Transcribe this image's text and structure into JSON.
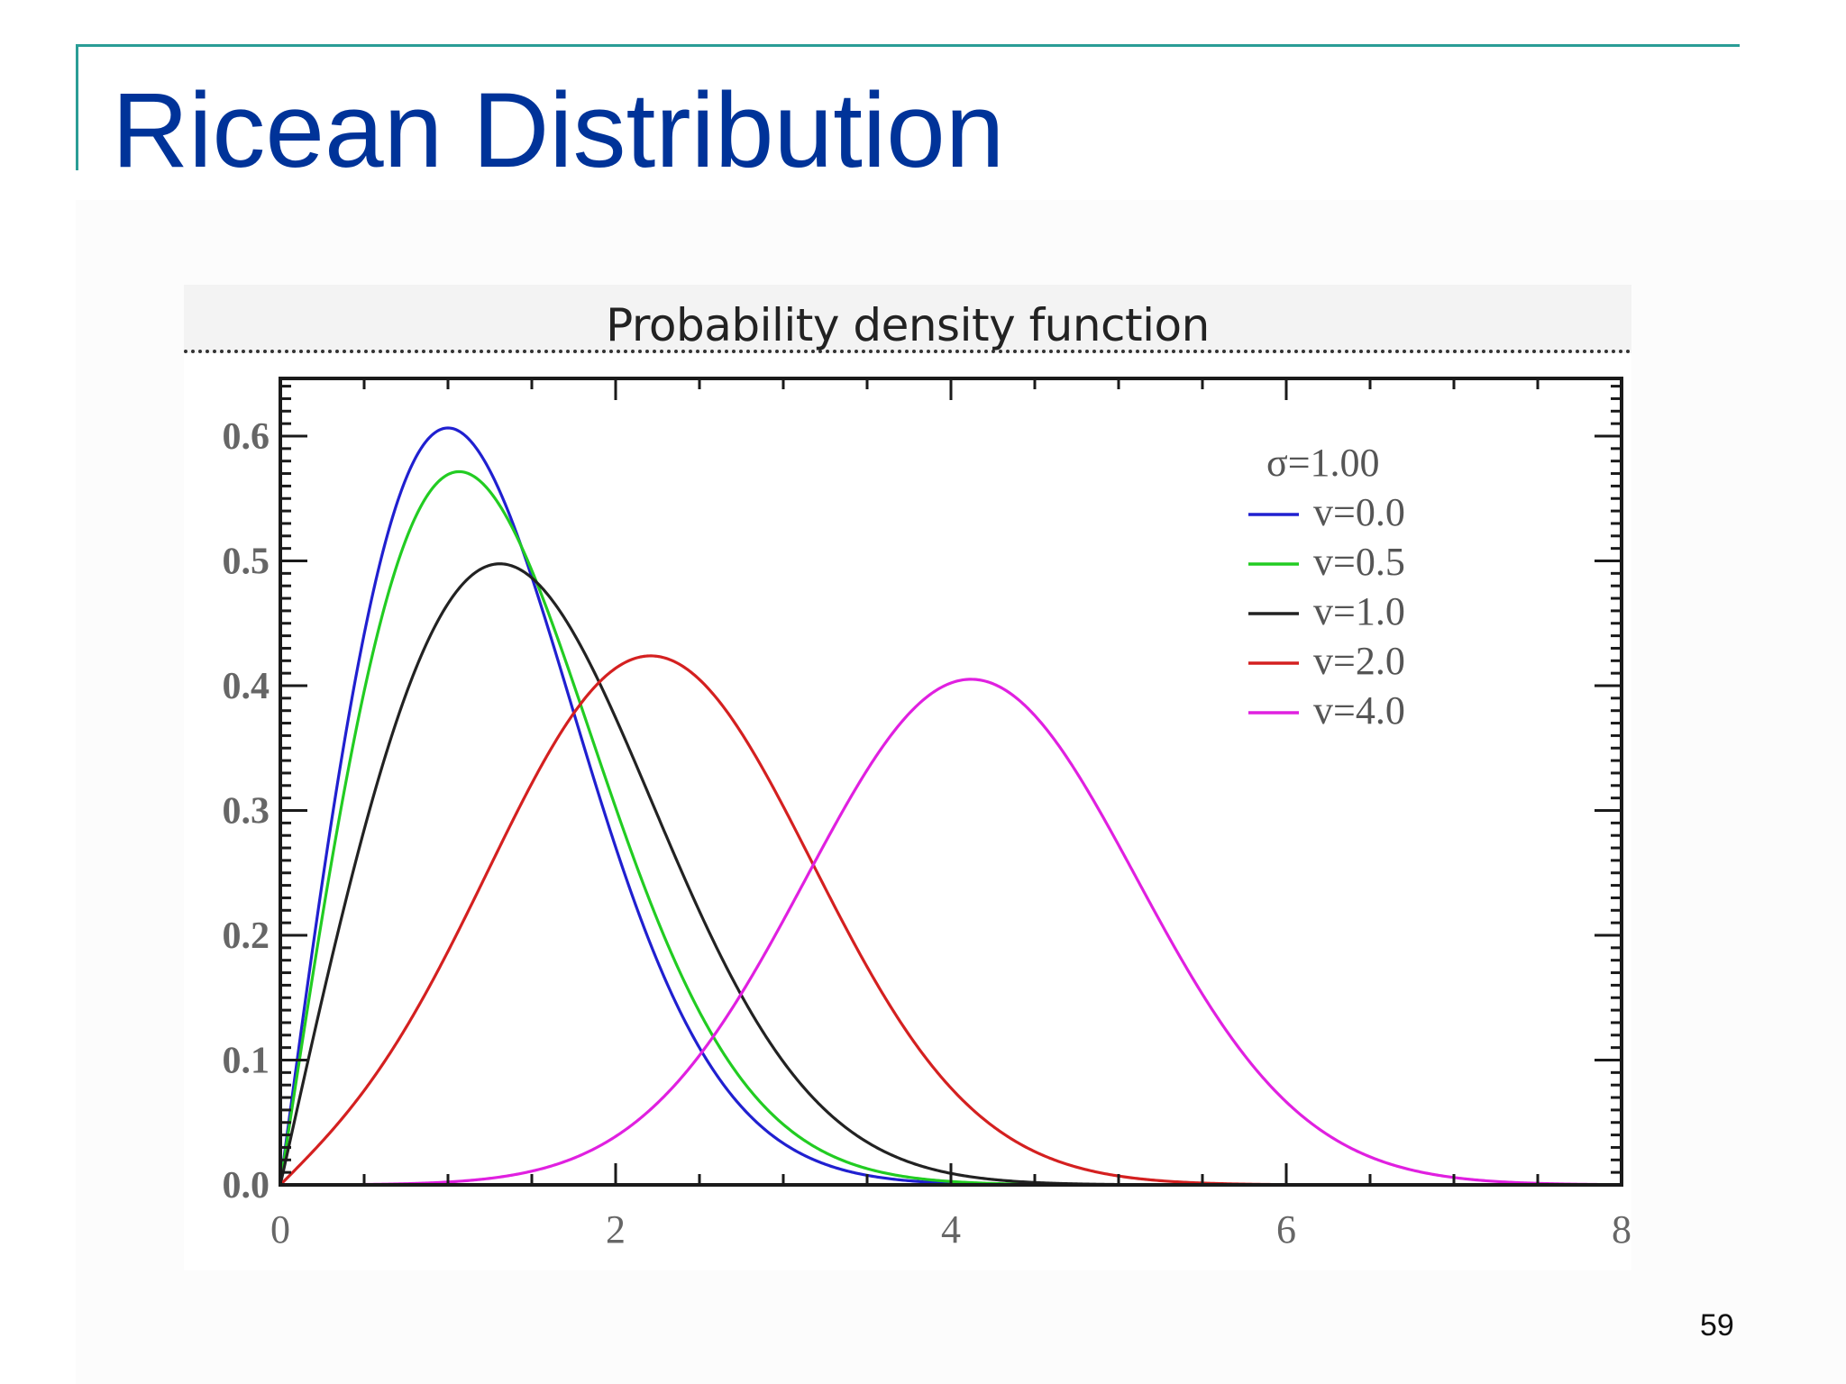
{
  "slide": {
    "title": "Ricean Distribution",
    "page_number": "59"
  },
  "theme": {
    "title_color": "#003399",
    "rule_color": "#2a9d96"
  },
  "chart_data": {
    "type": "line",
    "title": "Probability density function",
    "xlabel": "",
    "ylabel": "",
    "xlim": [
      0,
      8
    ],
    "ylim": [
      0,
      0.65
    ],
    "x_ticks": [
      "0",
      "2",
      "4",
      "6",
      "8"
    ],
    "y_ticks": [
      "0.0",
      "0.1",
      "0.2",
      "0.3",
      "0.4",
      "0.5",
      "0.6"
    ],
    "legend_title": "σ=1.00",
    "legend_position": "top-right",
    "grid": false,
    "sigma": 1.0,
    "series": [
      {
        "name": "v=0.0",
        "nu": 0.0,
        "color": "#2020d0",
        "peak": {
          "x": 1.0,
          "y": 0.61
        }
      },
      {
        "name": "v=0.5",
        "nu": 0.5,
        "color": "#22cc22",
        "peak": {
          "x": 1.1,
          "y": 0.57
        }
      },
      {
        "name": "v=1.0",
        "nu": 1.0,
        "color": "#222222",
        "peak": {
          "x": 1.35,
          "y": 0.5
        }
      },
      {
        "name": "v=2.0",
        "nu": 2.0,
        "color": "#d42020",
        "peak": {
          "x": 2.2,
          "y": 0.42
        }
      },
      {
        "name": "v=4.0",
        "nu": 4.0,
        "color": "#e020e0",
        "peak": {
          "x": 4.1,
          "y": 0.41
        }
      }
    ]
  }
}
